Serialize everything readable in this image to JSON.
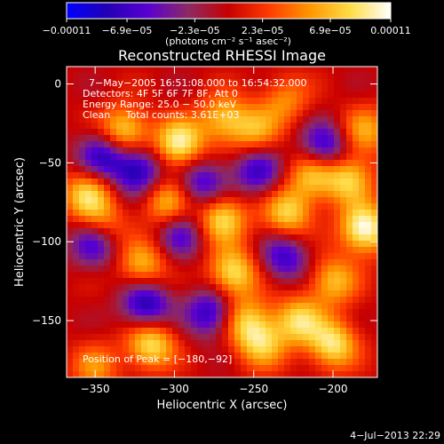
{
  "chart_data": {
    "type": "heatmap",
    "title": "Reconstructed RHESSI Image",
    "xlabel": "Heliocentric X (arcsec)",
    "ylabel": "Heliocentric Y (arcsec)",
    "xlim": [
      -368,
      -172
    ],
    "ylim": [
      -186,
      11
    ],
    "x_ticks": [
      -350,
      -300,
      -250,
      -200
    ],
    "y_ticks": [
      0,
      -50,
      -100,
      -150
    ],
    "x_tick_labels": [
      "−350",
      "−300",
      "−250",
      "−200"
    ],
    "y_tick_labels": [
      "0",
      "−50",
      "−100",
      "−150"
    ],
    "colorbar": {
      "range": [
        -0.00011,
        0.00011
      ],
      "tick_values": [
        -0.00011,
        -6.9e-05,
        -2.3e-05,
        2.3e-05,
        6.9e-05,
        0.00011
      ],
      "tick_labels": [
        "−0.00011",
        "−6.9e−05",
        "−2.3e−05",
        "2.3e−05",
        "6.9e−05",
        "0.00011"
      ],
      "unit_label": "(photons cm⁻² s⁻¹ asec⁻²)",
      "colormap": [
        "#0000ff",
        "#2200b4",
        "#5a00d2",
        "#8c2a64",
        "#c80000",
        "#ff3c00",
        "#ff9600",
        "#ffdc46",
        "#ffffff"
      ]
    },
    "annotations": [
      "7−May−2005 16:51:08.000 to 16:54:32.000",
      "Detectors: 4F 5F 6F 7F 8F, Att 0",
      "Energy Range: 25.0 − 50.0 keV",
      "Clean     Total counts: 3.61E+03"
    ],
    "peak_label": "Position of Peak = [−180,−92]",
    "peak": [
      -180,
      -92
    ],
    "blobs": [
      {
        "x": -332,
        "y": -30,
        "v": 9e-05
      },
      {
        "x": -297,
        "y": -38,
        "v": 0.0001
      },
      {
        "x": -269,
        "y": -22,
        "v": 7e-05
      },
      {
        "x": -249,
        "y": -30,
        "v": 6e-05
      },
      {
        "x": -230,
        "y": -10,
        "v": 5e-05
      },
      {
        "x": -213,
        "y": -58,
        "v": 7e-05
      },
      {
        "x": -228,
        "y": -82,
        "v": 8e-05
      },
      {
        "x": -270,
        "y": -85,
        "v": 9e-05
      },
      {
        "x": -305,
        "y": -75,
        "v": 7e-05
      },
      {
        "x": -355,
        "y": -70,
        "v": 8e-05
      },
      {
        "x": -345,
        "y": -90,
        "v": 6e-05
      },
      {
        "x": -180,
        "y": -92,
        "v": 0.00011
      },
      {
        "x": -190,
        "y": -60,
        "v": 8e-05
      },
      {
        "x": -200,
        "y": -125,
        "v": 7e-05
      },
      {
        "x": -263,
        "y": -120,
        "v": 9e-05
      },
      {
        "x": -255,
        "y": -150,
        "v": 7e-05
      },
      {
        "x": -245,
        "y": -165,
        "v": 7e-05
      },
      {
        "x": -315,
        "y": -165,
        "v": 9e-05
      },
      {
        "x": -222,
        "y": -150,
        "v": 8e-05
      },
      {
        "x": -200,
        "y": -165,
        "v": 9e-05
      },
      {
        "x": -320,
        "y": -115,
        "v": 7e-05
      },
      {
        "x": -350,
        "y": -180,
        "v": 5e-05
      },
      {
        "x": -180,
        "y": -30,
        "v": 6e-05
      },
      {
        "x": -248,
        "y": -55,
        "v": -7e-05
      },
      {
        "x": -345,
        "y": -45,
        "v": -8e-05
      },
      {
        "x": -323,
        "y": -55,
        "v": -9e-05
      },
      {
        "x": -277,
        "y": -145,
        "v": -8e-05
      },
      {
        "x": -318,
        "y": -140,
        "v": -9e-05
      },
      {
        "x": -282,
        "y": -63,
        "v": -7e-05
      },
      {
        "x": -205,
        "y": -40,
        "v": -8e-05
      },
      {
        "x": -296,
        "y": -95,
        "v": -6e-05
      },
      {
        "x": -350,
        "y": -100,
        "v": -8e-05
      },
      {
        "x": -230,
        "y": -110,
        "v": -7e-05
      }
    ]
  },
  "footer": {
    "timestamp": "4−Jul−2013 22:29"
  }
}
